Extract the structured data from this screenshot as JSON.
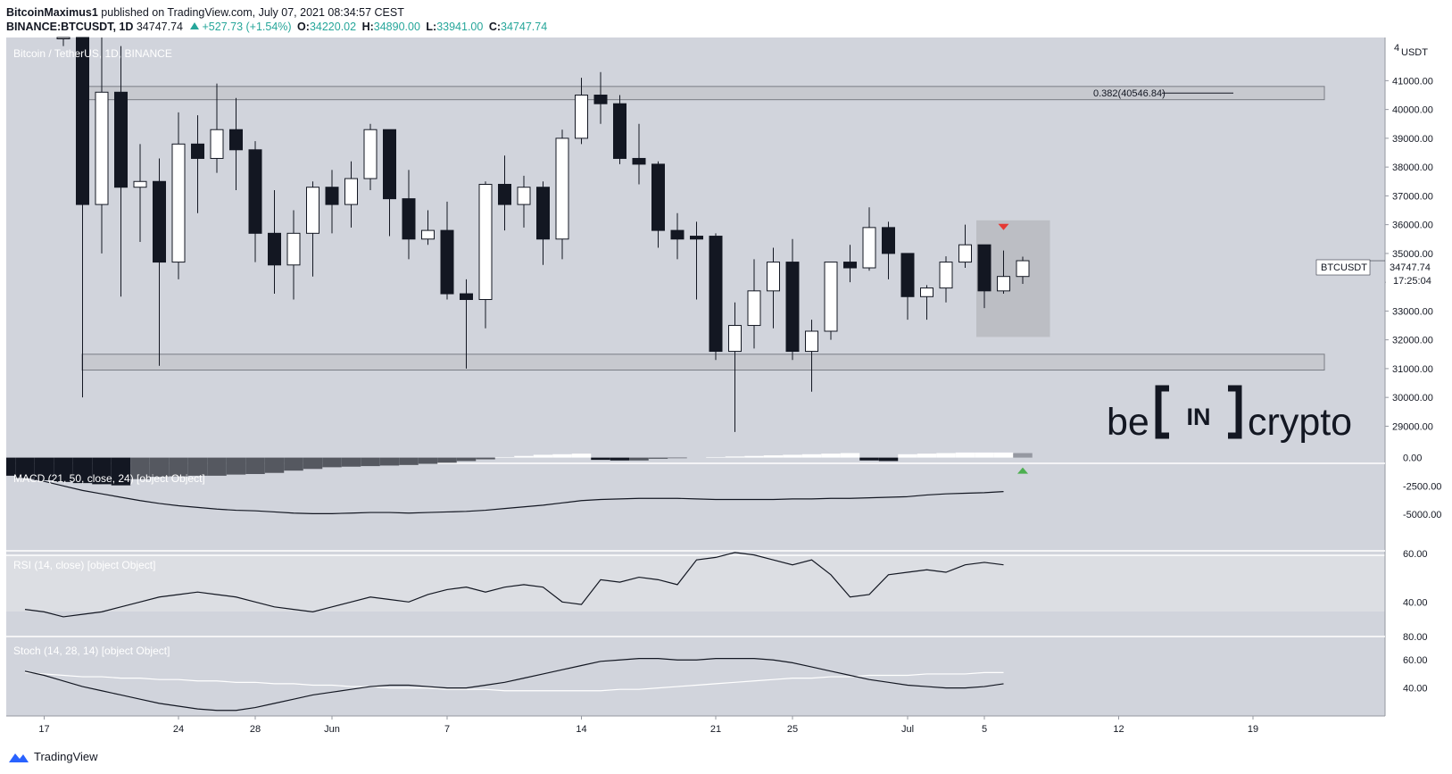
{
  "header": {
    "author": "BitcoinMaximus1",
    "published": "published on TradingView.com, July 07, 2021 08:34:57 CEST",
    "symbol": "BINANCE:BTCUSDT, 1D",
    "last": "34747.74",
    "change": "+527.73 (+1.54%)",
    "o_label": "O:",
    "o_value": "34220.02",
    "h_label": "H:",
    "h_value": "34890.00",
    "l_label": "L:",
    "l_value": "33941.00",
    "c_label": "C:",
    "c_value": "34747.74"
  },
  "footer": {
    "brand": "TradingView"
  },
  "watermark": {
    "text_left": "be",
    "text_mid": "IN",
    "text_right": "crypto"
  },
  "colors": {
    "bg": "#d1d4dc",
    "bull": "#ffffff",
    "bear": "#131722",
    "red": "#e53935",
    "green": "#4caf50"
  },
  "chart_data": {
    "type": "candlestick",
    "title": "Bitcoin / TetherUS, 1D, BINANCE",
    "currency_label": "USDT",
    "price_ticks": [
      "41000.00",
      "40000.00",
      "39000.00",
      "38000.00",
      "37000.00",
      "36000.00",
      "35000.00",
      "34000.00",
      "33000.00",
      "32000.00",
      "31000.00",
      "30000.00",
      "29000.00"
    ],
    "price_top_partial": "4",
    "ylim": [
      28300,
      42500
    ],
    "last_price_tag": {
      "symbol": "BTCUSDT",
      "price": "34747.74",
      "countdown": "17:25:04",
      "value": 34747.74
    },
    "fib_label": "0.382(40546.84)",
    "resistance_zone": [
      40340,
      40800
    ],
    "support_zone": [
      30950,
      31500
    ],
    "highlight_box": {
      "from_index": 48,
      "to_index": 51,
      "top": 36150,
      "bottom": 32100
    },
    "red_arrow_index": 49,
    "green_arrow_index": 50,
    "x_ticks": [
      {
        "label": "17",
        "index": -1
      },
      {
        "label": "24",
        "index": 6
      },
      {
        "label": "28",
        "index": 10
      },
      {
        "label": "Jun",
        "index": 14
      },
      {
        "label": "7",
        "index": 20
      },
      {
        "label": "14",
        "index": 27
      },
      {
        "label": "21",
        "index": 34
      },
      {
        "label": "25",
        "index": 38
      },
      {
        "label": "Jul",
        "index": 44
      },
      {
        "label": "5",
        "index": 48
      },
      {
        "label": "12",
        "index": 55
      },
      {
        "label": "19",
        "index": 62
      }
    ],
    "candles": [
      {
        "d": "May 18",
        "o": 42900,
        "h": 45000,
        "l": 42200,
        "c": 43600
      },
      {
        "d": "May 19",
        "o": 42500,
        "h": 43600,
        "l": 30000,
        "c": 36700
      },
      {
        "d": "May 20",
        "o": 36700,
        "h": 42500,
        "l": 35000,
        "c": 40600
      },
      {
        "d": "May 21",
        "o": 40600,
        "h": 42200,
        "l": 33500,
        "c": 37300
      },
      {
        "d": "May 22",
        "o": 37300,
        "h": 38800,
        "l": 35400,
        "c": 37500
      },
      {
        "d": "May 23",
        "o": 37500,
        "h": 38300,
        "l": 31100,
        "c": 34700
      },
      {
        "d": "May 24",
        "o": 34700,
        "h": 39900,
        "l": 34100,
        "c": 38800
      },
      {
        "d": "May 25",
        "o": 38800,
        "h": 39800,
        "l": 36400,
        "c": 38300
      },
      {
        "d": "May 26",
        "o": 38300,
        "h": 40900,
        "l": 37800,
        "c": 39300
      },
      {
        "d": "May 27",
        "o": 39300,
        "h": 40400,
        "l": 37200,
        "c": 38600
      },
      {
        "d": "May 28",
        "o": 38600,
        "h": 38900,
        "l": 34700,
        "c": 35700
      },
      {
        "d": "May 29",
        "o": 35700,
        "h": 37200,
        "l": 33600,
        "c": 34600
      },
      {
        "d": "May 30",
        "o": 34600,
        "h": 36500,
        "l": 33400,
        "c": 35700
      },
      {
        "d": "May 31",
        "o": 35700,
        "h": 37500,
        "l": 34200,
        "c": 37300
      },
      {
        "d": "Jun 01",
        "o": 37300,
        "h": 37900,
        "l": 35700,
        "c": 36700
      },
      {
        "d": "Jun 02",
        "o": 36700,
        "h": 38200,
        "l": 35900,
        "c": 37600
      },
      {
        "d": "Jun 03",
        "o": 37600,
        "h": 39500,
        "l": 37200,
        "c": 39300
      },
      {
        "d": "Jun 04",
        "o": 39300,
        "h": 39300,
        "l": 35600,
        "c": 36900
      },
      {
        "d": "Jun 05",
        "o": 36900,
        "h": 37900,
        "l": 34800,
        "c": 35500
      },
      {
        "d": "Jun 06",
        "o": 35500,
        "h": 36500,
        "l": 35300,
        "c": 35800
      },
      {
        "d": "Jun 07",
        "o": 35800,
        "h": 36800,
        "l": 33400,
        "c": 33600
      },
      {
        "d": "Jun 08",
        "o": 33600,
        "h": 34100,
        "l": 31000,
        "c": 33400
      },
      {
        "d": "Jun 09",
        "o": 33400,
        "h": 37500,
        "l": 32400,
        "c": 37400
      },
      {
        "d": "Jun 10",
        "o": 37400,
        "h": 38400,
        "l": 35800,
        "c": 36700
      },
      {
        "d": "Jun 11",
        "o": 36700,
        "h": 37700,
        "l": 35900,
        "c": 37300
      },
      {
        "d": "Jun 12",
        "o": 37300,
        "h": 37500,
        "l": 34600,
        "c": 35500
      },
      {
        "d": "Jun 13",
        "o": 35500,
        "h": 39300,
        "l": 34800,
        "c": 39000
      },
      {
        "d": "Jun 14",
        "o": 39000,
        "h": 41100,
        "l": 38800,
        "c": 40500
      },
      {
        "d": "Jun 15",
        "o": 40500,
        "h": 41300,
        "l": 39500,
        "c": 40200
      },
      {
        "d": "Jun 16",
        "o": 40200,
        "h": 40500,
        "l": 38100,
        "c": 38300
      },
      {
        "d": "Jun 17",
        "o": 38300,
        "h": 39500,
        "l": 37400,
        "c": 38100
      },
      {
        "d": "Jun 18",
        "o": 38100,
        "h": 38200,
        "l": 35200,
        "c": 35800
      },
      {
        "d": "Jun 19",
        "o": 35800,
        "h": 36400,
        "l": 34800,
        "c": 35500
      },
      {
        "d": "Jun 20",
        "o": 35600,
        "h": 36100,
        "l": 33400,
        "c": 35500
      },
      {
        "d": "Jun 21",
        "o": 35600,
        "h": 35700,
        "l": 31300,
        "c": 31600
      },
      {
        "d": "Jun 22",
        "o": 31600,
        "h": 33300,
        "l": 28800,
        "c": 32500
      },
      {
        "d": "Jun 23",
        "o": 32500,
        "h": 34800,
        "l": 31700,
        "c": 33700
      },
      {
        "d": "Jun 24",
        "o": 33700,
        "h": 35200,
        "l": 32400,
        "c": 34700
      },
      {
        "d": "Jun 25",
        "o": 34700,
        "h": 35500,
        "l": 31300,
        "c": 31600
      },
      {
        "d": "Jun 26",
        "o": 31600,
        "h": 32700,
        "l": 30200,
        "c": 32300
      },
      {
        "d": "Jun 27",
        "o": 32300,
        "h": 34700,
        "l": 32000,
        "c": 34700
      },
      {
        "d": "Jun 28",
        "o": 34700,
        "h": 35300,
        "l": 34000,
        "c": 34500
      },
      {
        "d": "Jun 29",
        "o": 34500,
        "h": 36600,
        "l": 34400,
        "c": 35900
      },
      {
        "d": "Jun 30",
        "o": 35900,
        "h": 36100,
        "l": 34100,
        "c": 35000
      },
      {
        "d": "Jul 01",
        "o": 35000,
        "h": 35000,
        "l": 32700,
        "c": 33500
      },
      {
        "d": "Jul 02",
        "o": 33500,
        "h": 33900,
        "l": 32700,
        "c": 33800
      },
      {
        "d": "Jul 03",
        "o": 33800,
        "h": 34900,
        "l": 33300,
        "c": 34700
      },
      {
        "d": "Jul 04",
        "o": 34700,
        "h": 36000,
        "l": 34500,
        "c": 35300
      },
      {
        "d": "Jul 05",
        "o": 35300,
        "h": 35300,
        "l": 33100,
        "c": 33700
      },
      {
        "d": "Jul 06",
        "o": 33700,
        "h": 35100,
        "l": 33600,
        "c": 34200
      },
      {
        "d": "Jul 07",
        "o": 34200,
        "h": 34890,
        "l": 33941,
        "c": 34747.74
      }
    ],
    "macd": {
      "label": "MACD (21, 50, close, 24) [object Object]",
      "ticks": [
        "0.00",
        "-2500.00",
        "-5000.00"
      ],
      "ylim": [
        -6500,
        600
      ],
      "hist_start": -5,
      "histogram": [
        -1100,
        -1400,
        -1600,
        -1800,
        -2000,
        -2150,
        -2250,
        -2350,
        -2450,
        -1900,
        -1700,
        -1650,
        -1600,
        -1600,
        -1500,
        -1450,
        -1350,
        -1150,
        -1000,
        -850,
        -800,
        -750,
        -700,
        -650,
        -550,
        -450,
        -300,
        -150,
        50,
        150,
        250,
        300,
        350,
        -200,
        -250,
        -250,
        -100,
        -50,
        0,
        50,
        100,
        150,
        200,
        250,
        300,
        350,
        400,
        -250,
        -300,
        300,
        350,
        400,
        450,
        450,
        450,
        400
      ],
      "signal": [
        -900,
        -1150,
        -1400,
        -1700,
        -2100,
        -2500,
        -2900,
        -3200,
        -3500,
        -3800,
        -4050,
        -4250,
        -4400,
        -4550,
        -4650,
        -4700,
        -4800,
        -4900,
        -4950,
        -4950,
        -4900,
        -4850,
        -4850,
        -4900,
        -4850,
        -4800,
        -4750,
        -4650,
        -4500,
        -4350,
        -4200,
        -4000,
        -3800,
        -3700,
        -3650,
        -3600,
        -3600,
        -3600,
        -3650,
        -3700,
        -3700,
        -3700,
        -3700,
        -3650,
        -3650,
        -3600,
        -3600,
        -3550,
        -3500,
        -3450,
        -3300,
        -3200,
        -3150,
        -3100,
        -3000,
        -2900,
        -2800,
        -2650
      ]
    },
    "rsi": {
      "label": "RSI (14, close) [object Object]",
      "ticks": [
        "60.00",
        "40.00"
      ],
      "top_partial": "60.00",
      "ylim": [
        30,
        65
      ],
      "x_start": -5,
      "values": [
        40,
        39,
        38,
        37,
        36,
        34,
        35,
        36,
        38,
        40,
        42,
        43,
        44,
        43,
        42,
        40,
        38,
        37,
        36,
        38,
        40,
        42,
        41,
        40,
        43,
        45,
        46,
        44,
        46,
        47,
        46,
        40,
        39,
        49,
        48,
        50,
        49,
        47,
        57,
        58,
        60,
        59,
        57,
        55,
        57,
        51,
        42,
        43,
        51,
        52,
        53,
        52,
        55,
        56,
        55,
        52,
        51,
        50,
        55,
        56,
        60,
        60,
        58,
        54
      ]
    },
    "stoch": {
      "label": "Stoch (14, 28, 14) [object Object]",
      "ticks": [
        "60.00",
        "40.00"
      ],
      "top_partial": "80.00",
      "ylim": [
        20,
        85
      ],
      "x_start": -5,
      "k": [
        62,
        58,
        55,
        52,
        49,
        45,
        41,
        38,
        35,
        32,
        29,
        27,
        25,
        24,
        24,
        26,
        29,
        32,
        35,
        37,
        39,
        41,
        42,
        42,
        41,
        40,
        40,
        42,
        44,
        47,
        50,
        53,
        56,
        59,
        60,
        61,
        61,
        60,
        60,
        61,
        61,
        61,
        60,
        58,
        55,
        52,
        49,
        46,
        44,
        42,
        41,
        40,
        40,
        41,
        43,
        45,
        48,
        51,
        53,
        56
      ],
      "d": [
        54,
        53,
        52,
        51,
        50,
        49,
        48,
        48,
        47,
        47,
        46,
        46,
        45,
        45,
        44,
        44,
        43,
        43,
        42,
        42,
        41,
        41,
        40,
        40,
        40,
        39,
        39,
        39,
        38,
        38,
        38,
        38,
        38,
        38,
        39,
        39,
        40,
        41,
        42,
        43,
        44,
        45,
        46,
        47,
        47,
        48,
        48,
        49,
        49,
        49,
        50,
        50,
        50,
        51,
        51,
        51,
        52,
        52,
        52,
        52
      ]
    }
  }
}
